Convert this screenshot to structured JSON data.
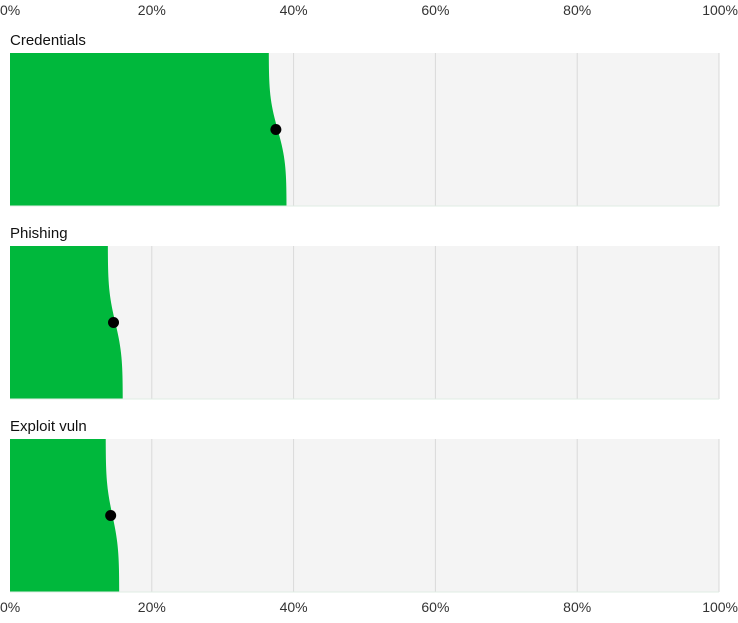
{
  "chart_data": {
    "type": "area",
    "x_tick_labels": [
      "0%",
      "20%",
      "40%",
      "60%",
      "80%",
      "100%"
    ],
    "x_ticks": [
      0,
      20,
      40,
      60,
      80,
      100
    ],
    "xlim": [
      0,
      100
    ],
    "grid": true,
    "colors": {
      "fill": "#00b83c",
      "panel_bg": "#f4f4f4",
      "grid": "#d9d9d9",
      "marker": "#000000"
    },
    "series": [
      {
        "name": "Credentials",
        "point_estimate": 37.5,
        "interval_low": 36.5,
        "interval_high": 39
      },
      {
        "name": "Phishing",
        "point_estimate": 14.6,
        "interval_low": 13.8,
        "interval_high": 15.9
      },
      {
        "name": "Exploit vuln",
        "point_estimate": 14.2,
        "interval_low": 13.5,
        "interval_high": 15.4
      }
    ]
  }
}
